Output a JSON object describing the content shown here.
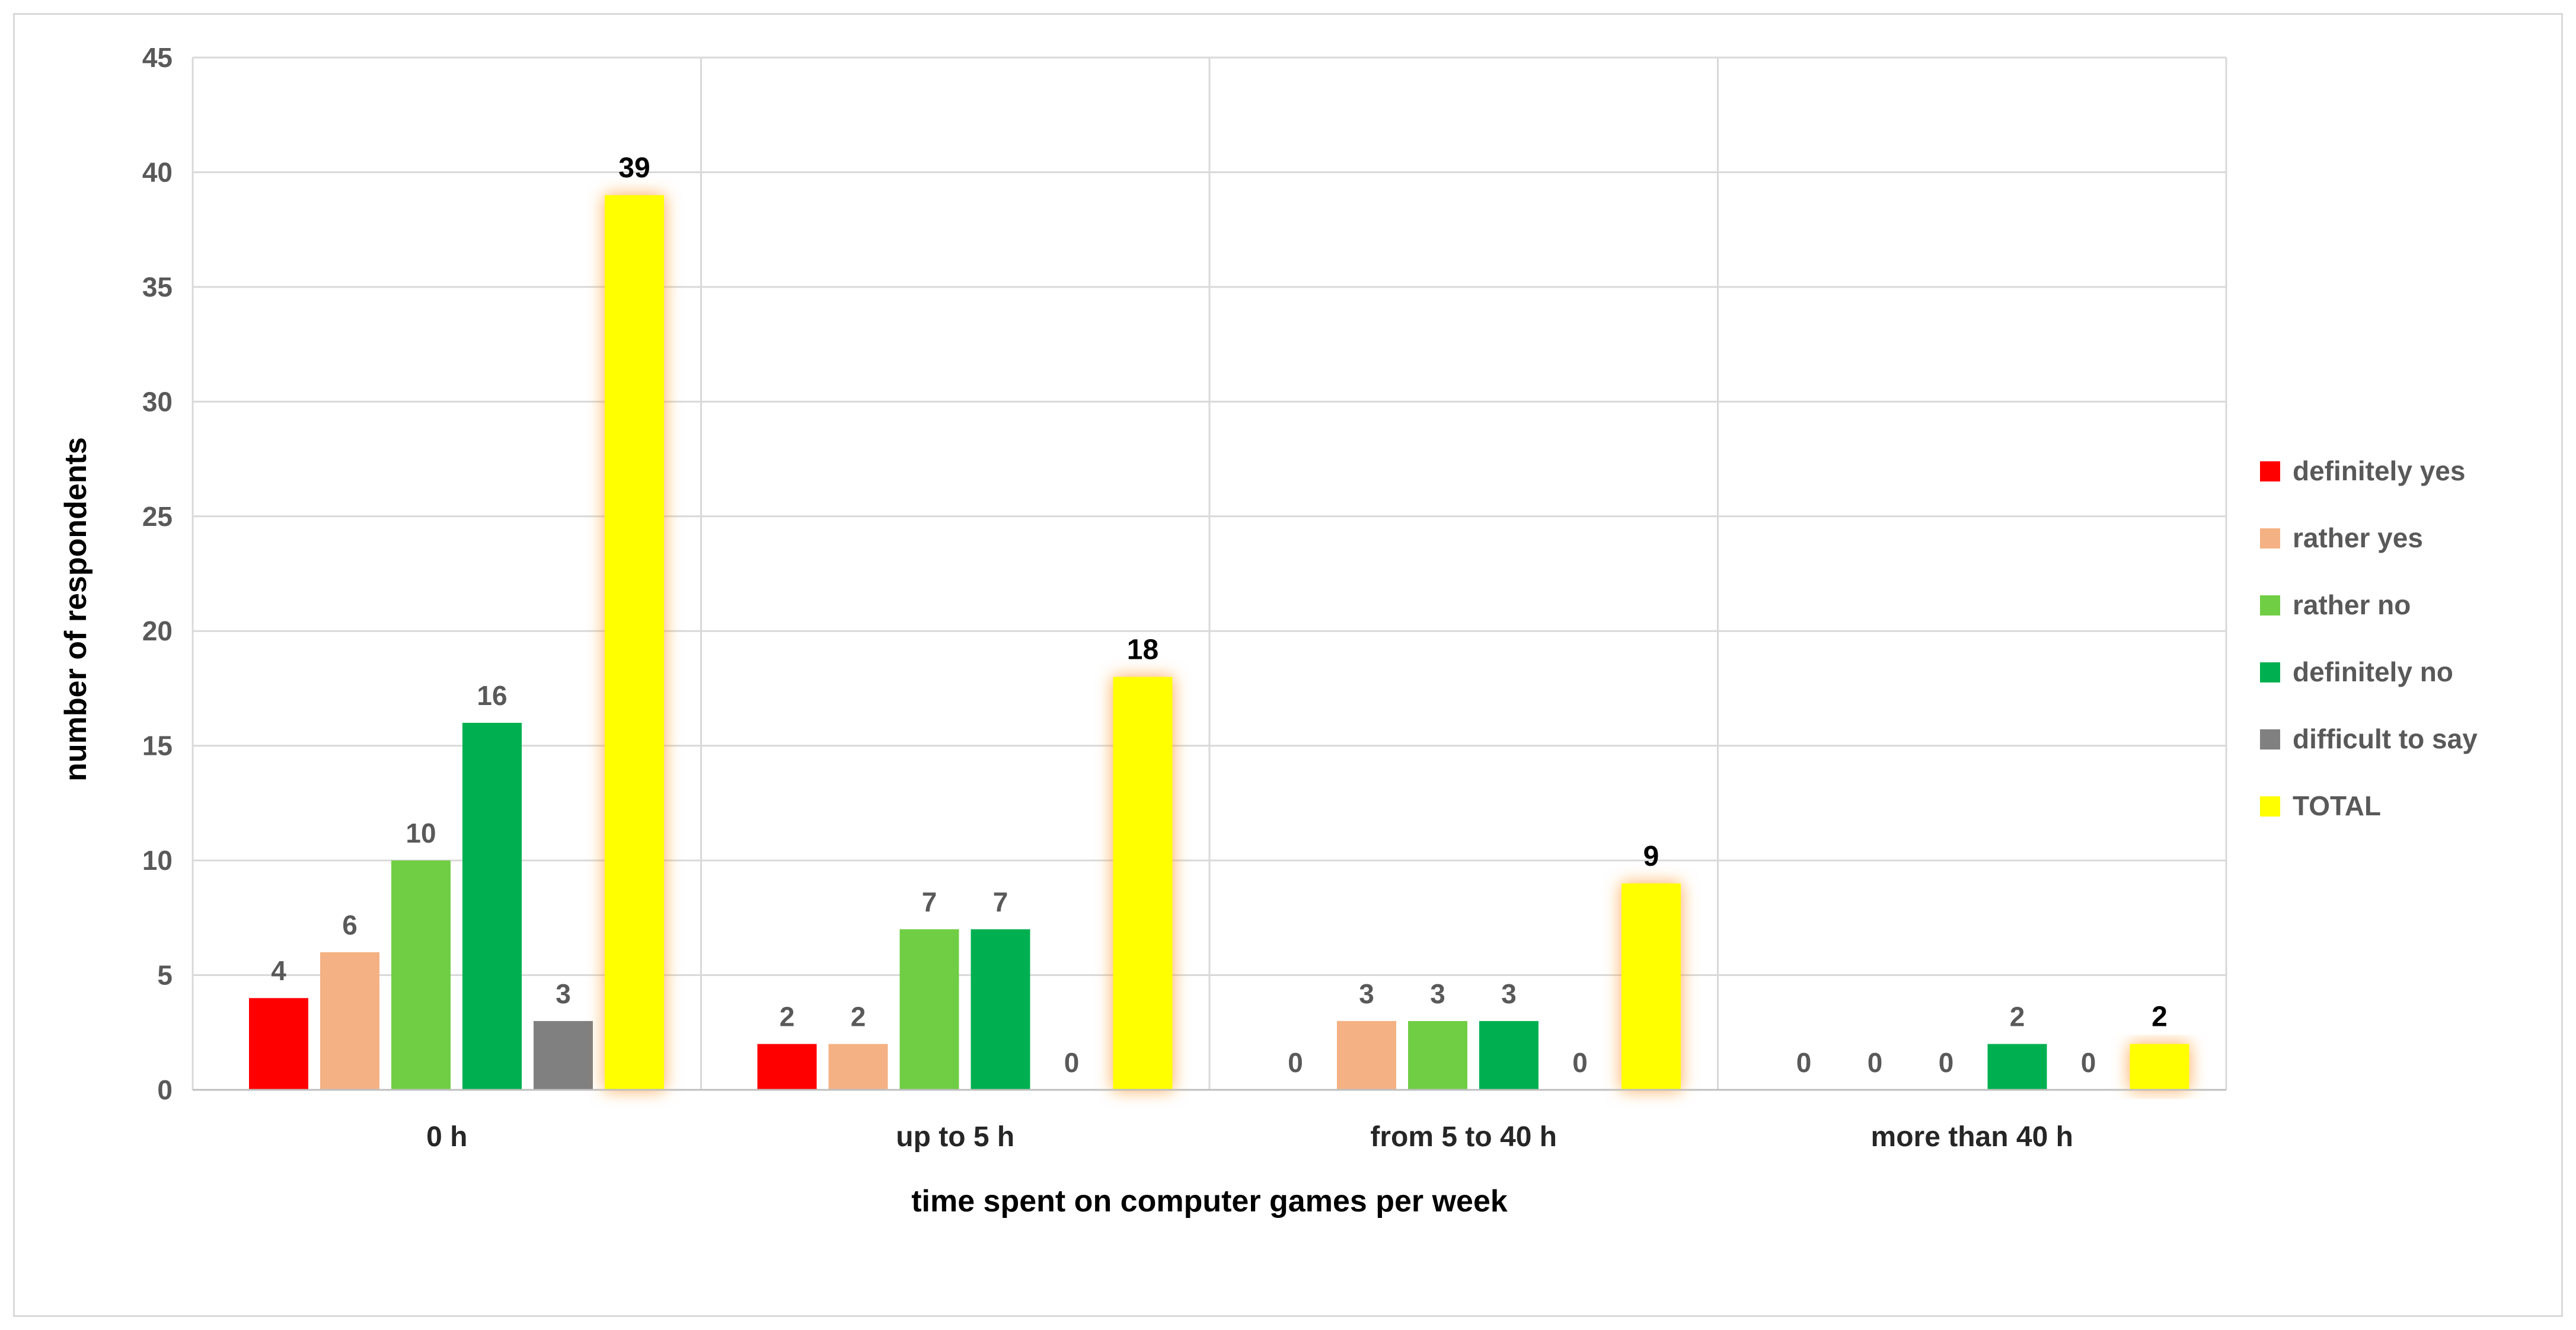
{
  "chart_data": {
    "type": "bar",
    "title": "",
    "xlabel": "time spent on computer games per week",
    "ylabel": "number of respondents",
    "ylim": [
      0,
      45
    ],
    "yticks": [
      0,
      5,
      10,
      15,
      20,
      25,
      30,
      35,
      40,
      45
    ],
    "grid": true,
    "legend_position": "right",
    "categories": [
      "0 h",
      "up to 5 h",
      "from 5 to 40 h",
      "more than 40 h"
    ],
    "series": [
      {
        "name": "definitely yes",
        "color": "#ff0000",
        "values": [
          4,
          2,
          0,
          0
        ]
      },
      {
        "name": "rather yes",
        "color": "#f4b183",
        "values": [
          6,
          2,
          3,
          0
        ]
      },
      {
        "name": "rather no",
        "color": "#70ce44",
        "values": [
          10,
          7,
          3,
          0
        ]
      },
      {
        "name": "definitely no",
        "color": "#00b050",
        "values": [
          16,
          7,
          3,
          2
        ]
      },
      {
        "name": "difficult to say",
        "color": "#808080",
        "values": [
          3,
          0,
          0,
          0
        ]
      },
      {
        "name": "TOTAL",
        "color": "#ffff00",
        "glow_color": "#ffc000",
        "values": [
          39,
          18,
          9,
          2
        ]
      }
    ]
  }
}
